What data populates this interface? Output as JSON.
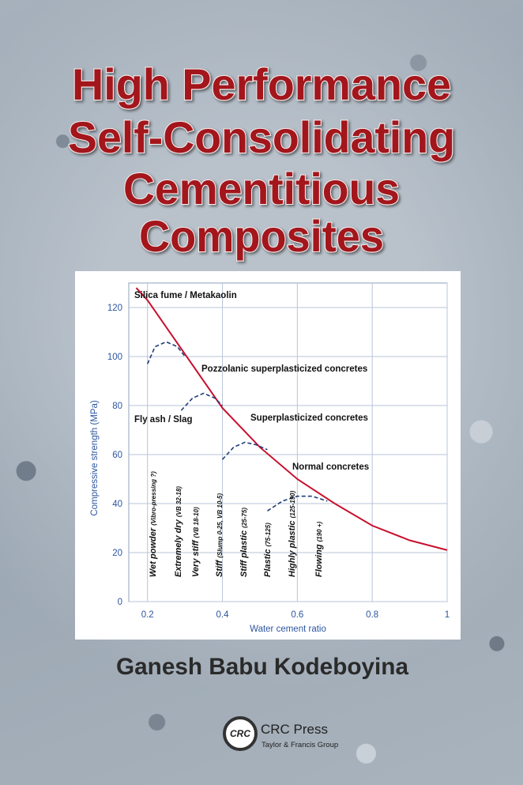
{
  "cover": {
    "title": [
      "High Performance",
      "Self-Consolidating",
      "Cementitious",
      "Composites"
    ],
    "author": "Ganesh Babu Kodeboyina",
    "publisher": {
      "logo": "CRC",
      "name": "CRC Press",
      "group": "Taylor & Francis Group"
    }
  },
  "chart_data": {
    "type": "line",
    "xlabel": "Water cement ratio",
    "ylabel": "Compressive strength (MPa)",
    "xlim": [
      0.15,
      1
    ],
    "ylim": [
      0,
      130
    ],
    "xticks": [
      0.2,
      0.4,
      0.6,
      0.8,
      1
    ],
    "yticks": [
      0,
      20,
      40,
      60,
      80,
      100,
      120
    ],
    "grid": true,
    "series": [
      {
        "color": "#c8102e",
        "style": "solid",
        "x": [
          0.17,
          0.2,
          0.3,
          0.4,
          0.5,
          0.6,
          0.7,
          0.8,
          0.9,
          1
        ],
        "values": [
          128,
          123,
          101,
          79,
          63,
          50,
          40,
          31,
          25,
          21
        ]
      },
      {
        "color": "#1f3f7a",
        "style": "dashed",
        "x": [
          0.2,
          0.22,
          0.25,
          0.28,
          0.3
        ],
        "values": [
          97,
          104,
          106,
          104,
          100
        ]
      },
      {
        "color": "#1f3f7a",
        "style": "dashed",
        "x": [
          0.29,
          0.32,
          0.35,
          0.38,
          0.4
        ],
        "values": [
          78,
          83,
          85,
          83,
          80
        ]
      },
      {
        "color": "#1f3f7a",
        "style": "dashed",
        "x": [
          0.4,
          0.43,
          0.46,
          0.49,
          0.52
        ],
        "values": [
          58,
          63,
          65,
          64,
          62
        ]
      },
      {
        "color": "#1f3f7a",
        "style": "dashed",
        "x": [
          0.52,
          0.56,
          0.6,
          0.64,
          0.68
        ],
        "values": [
          37,
          41,
          43,
          43,
          41
        ]
      }
    ],
    "annotations": [
      "Silica fume / Metakaolin",
      "Pozzolanic superplasticized concretes",
      "Fly ash / Slag",
      "Superplasticized concretes",
      "Normal concretes"
    ],
    "workability": [
      {
        "label": "Wet powder",
        "detail": "(Vibro-pressing ?)"
      },
      {
        "label": "Extremely dry",
        "detail": "(VB 32-18)"
      },
      {
        "label": "Very stiff",
        "detail": "(VB 18-10)"
      },
      {
        "label": "Stiff",
        "detail": "(Slump 0-25, VB 10-5)"
      },
      {
        "label": "Stiff plastic",
        "detail": "(25-75)"
      },
      {
        "label": "Plastic",
        "detail": "(75-125)"
      },
      {
        "label": "Highly plastic",
        "detail": "(125-190)"
      },
      {
        "label": "Flowing",
        "detail": "(190 +)"
      }
    ]
  }
}
